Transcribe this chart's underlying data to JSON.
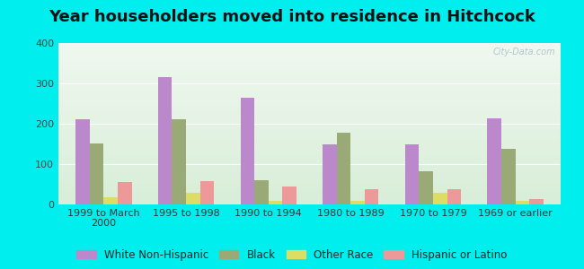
{
  "title": "Year householders moved into residence in Hitchcock",
  "categories": [
    "1999 to March\n2000",
    "1995 to 1998",
    "1990 to 1994",
    "1980 to 1989",
    "1970 to 1979",
    "1969 or earlier"
  ],
  "series": {
    "White Non-Hispanic": [
      212,
      315,
      265,
      150,
      150,
      213
    ],
    "Black": [
      152,
      212,
      60,
      178,
      82,
      138
    ],
    "Other Race": [
      18,
      28,
      10,
      10,
      28,
      10
    ],
    "Hispanic or Latino": [
      55,
      58,
      45,
      38,
      38,
      13
    ]
  },
  "colors": {
    "White Non-Hispanic": "#bb88cc",
    "Black": "#99aa77",
    "Other Race": "#dddd66",
    "Hispanic or Latino": "#ee9999"
  },
  "ylim": [
    0,
    400
  ],
  "yticks": [
    0,
    100,
    200,
    300,
    400
  ],
  "background_outer": "#00eeee",
  "background_top": "#f0f8f0",
  "background_bottom": "#d8eed8",
  "title_fontsize": 13,
  "tick_fontsize": 8,
  "legend_fontsize": 8.5,
  "bar_width": 0.17,
  "watermark": "City-Data.com"
}
